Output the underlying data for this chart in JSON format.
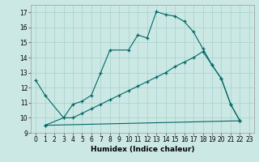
{
  "title": "",
  "xlabel": "Humidex (Indice chaleur)",
  "bg_color": "#cce8e4",
  "grid_color": "#aad4d0",
  "line_color": "#006666",
  "xlim": [
    -0.5,
    23.5
  ],
  "ylim": [
    9,
    17.5
  ],
  "xticks": [
    0,
    1,
    2,
    3,
    4,
    5,
    6,
    7,
    8,
    9,
    10,
    11,
    12,
    13,
    14,
    15,
    16,
    17,
    18,
    19,
    20,
    21,
    22,
    23
  ],
  "yticks": [
    9,
    10,
    11,
    12,
    13,
    14,
    15,
    16,
    17
  ],
  "line1_x": [
    0,
    1,
    3,
    4,
    5,
    6,
    7,
    8,
    10,
    11,
    12,
    13,
    14,
    15,
    16,
    17,
    18,
    19,
    20,
    21,
    22
  ],
  "line1_y": [
    12.5,
    11.5,
    10.0,
    10.9,
    11.1,
    11.5,
    13.0,
    14.5,
    14.5,
    15.5,
    15.3,
    17.05,
    16.85,
    16.75,
    16.4,
    15.7,
    14.6,
    13.5,
    12.6,
    10.9,
    9.8
  ],
  "line2_x": [
    1,
    3,
    4,
    5,
    6,
    7,
    8,
    9,
    10,
    11,
    12,
    13,
    14,
    15,
    16,
    17,
    18,
    19,
    20,
    21,
    22
  ],
  "line2_y": [
    9.5,
    10.0,
    10.0,
    10.3,
    10.6,
    10.9,
    11.2,
    11.5,
    11.8,
    12.1,
    12.4,
    12.7,
    13.0,
    13.4,
    13.7,
    14.0,
    14.4,
    13.5,
    12.6,
    10.9,
    9.8
  ],
  "line3_x": [
    1,
    22
  ],
  "line3_y": [
    9.5,
    9.8
  ]
}
